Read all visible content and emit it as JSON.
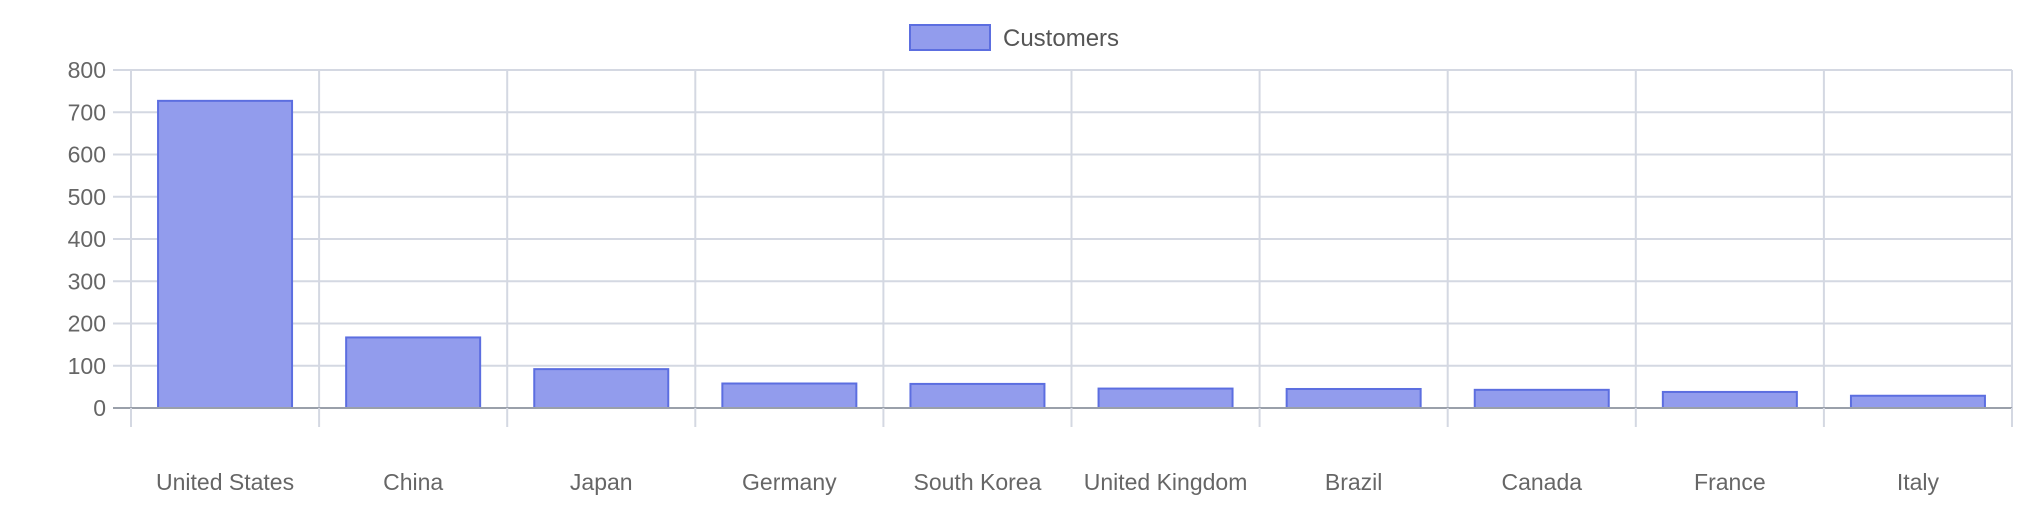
{
  "chart_data": {
    "type": "bar",
    "categories": [
      "United States",
      "China",
      "Japan",
      "Germany",
      "South Korea",
      "United Kingdom",
      "Brazil",
      "Canada",
      "France",
      "Italy"
    ],
    "series": [
      {
        "name": "Customers",
        "values": [
          727,
          167,
          92,
          58,
          57,
          46,
          45,
          43,
          38,
          29
        ]
      }
    ],
    "ylim": [
      0,
      800
    ],
    "yticks": [
      0,
      100,
      200,
      300,
      400,
      500,
      600,
      700,
      800
    ],
    "grid": true,
    "legend_position": "top-center",
    "colors": {
      "bar_fill": "#929ced",
      "bar_stroke": "#5c6ee0",
      "grid": "#d4d8e2",
      "axis": "#9aa0aa",
      "tick_text": "#666666"
    }
  }
}
